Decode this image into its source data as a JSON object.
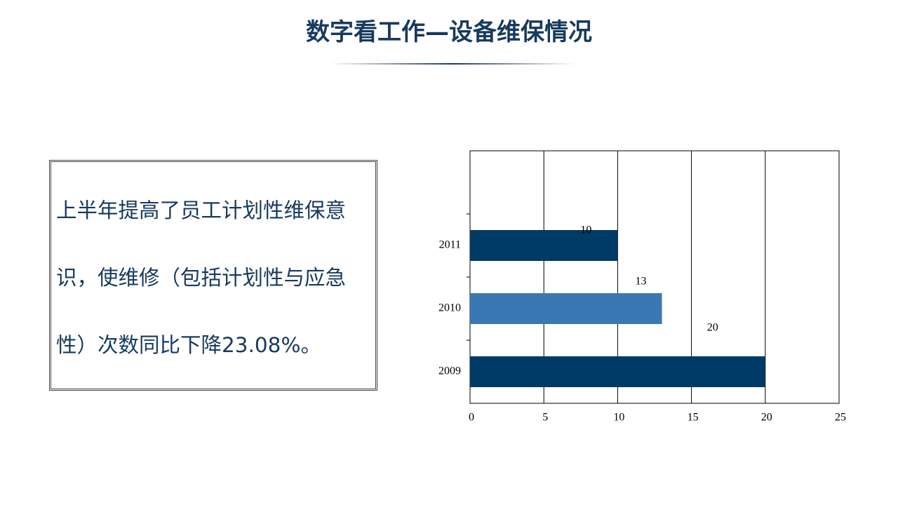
{
  "header": {
    "title": "数字看工作—设备维保情况"
  },
  "textbox": {
    "text": "上半年提高了员工计划性维保意识，使维修（包括计划性与应急性）次数同比下降23.08%。"
  },
  "chart_data": {
    "type": "bar",
    "orientation": "horizontal",
    "categories": [
      null,
      "2011",
      "2010",
      "2009"
    ],
    "values": [
      null,
      10,
      13,
      20
    ],
    "colors": [
      null,
      "#003a66",
      "#3a78b3",
      "#003a66"
    ],
    "xlim": [
      0,
      25
    ],
    "xticks": [
      0,
      5,
      10,
      15,
      20,
      25
    ],
    "grid": true
  }
}
